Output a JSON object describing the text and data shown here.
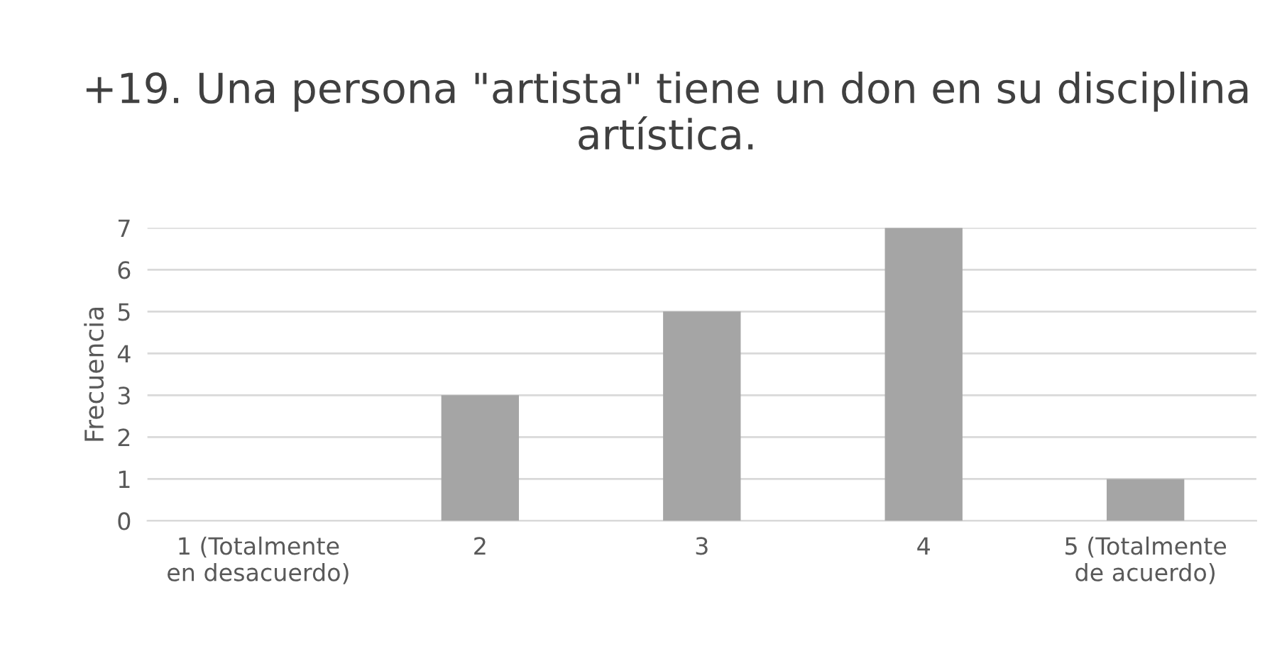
{
  "chart_data": {
    "type": "bar",
    "title": "+19. Una persona \"artista\" tiene un don en su disciplina artística.",
    "ylabel": "Frecuencia",
    "categories": [
      "1 (Totalmente\nen desacuerdo)",
      "2",
      "3",
      "4",
      "5 (Totalmente\nde acuerdo)"
    ],
    "values": [
      0,
      3,
      5,
      7,
      1
    ],
    "color": "#a5a5a5",
    "ylim": [
      0,
      7
    ],
    "yticks": [
      0,
      1,
      2,
      3,
      4,
      5,
      6,
      7
    ],
    "grid": "y"
  }
}
